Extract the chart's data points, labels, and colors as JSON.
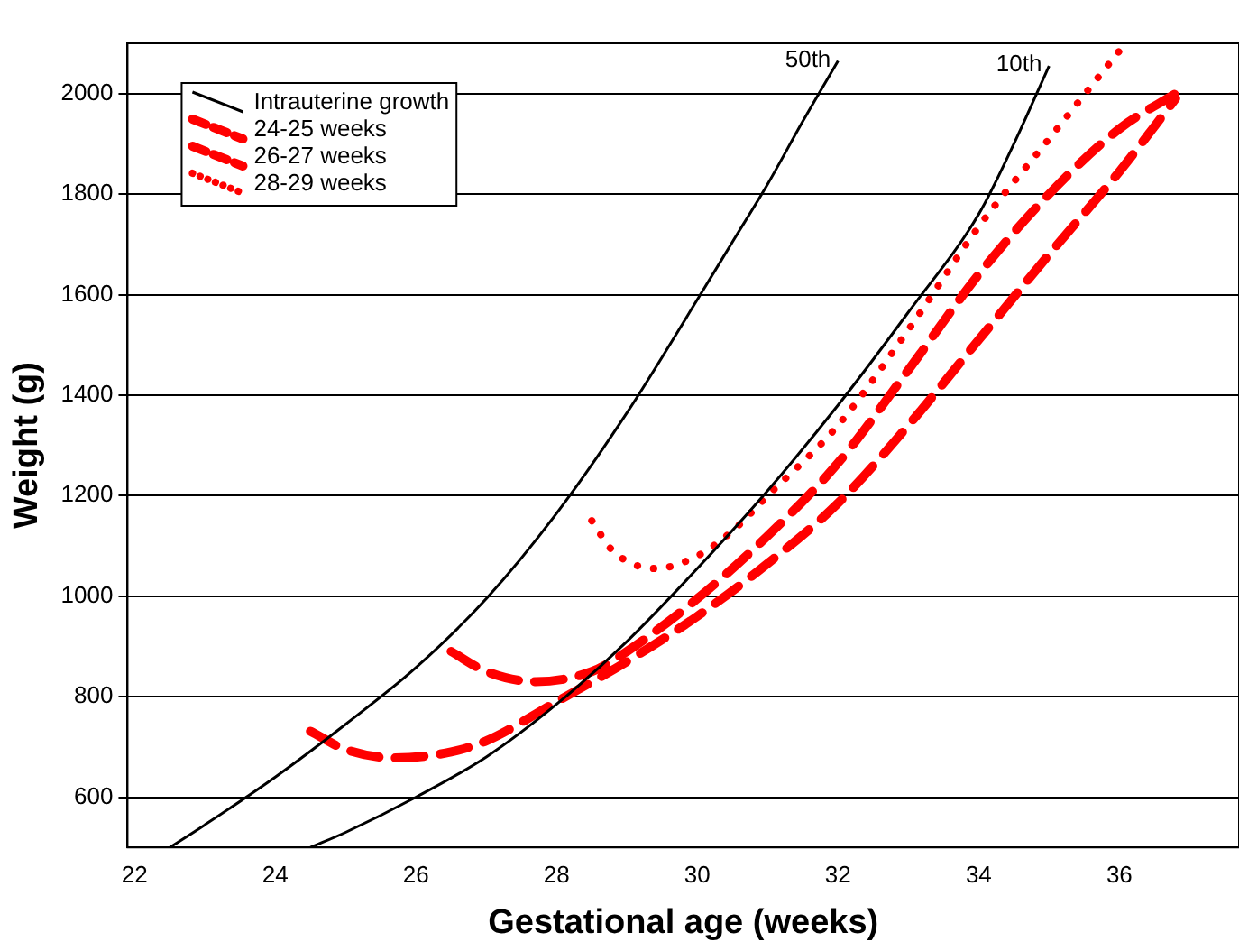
{
  "chart_data": {
    "type": "line",
    "xlabel": "Gestational age (weeks)",
    "ylabel": "Weight (g)",
    "xlim": [
      21.9,
      37.7
    ],
    "xticks": [
      22,
      24,
      26,
      28,
      30,
      32,
      34,
      36
    ],
    "ylim": [
      500,
      2100
    ],
    "yticks": [
      600,
      800,
      1000,
      1200,
      1400,
      1600,
      1800,
      2000
    ],
    "grid": "y",
    "legend": "top left",
    "marker": "none",
    "series": [
      {
        "name": "Intrauterine growth",
        "color": "#000000",
        "line_style": "solid",
        "x": [
          22.5,
          23,
          24,
          25,
          26,
          27,
          28,
          29,
          30,
          30.5,
          31,
          31.5,
          32
        ],
        "values": [
          500,
          545,
          640,
          745,
          858,
          995,
          1165,
          1365,
          1590,
          1705,
          1820,
          1945,
          2065
        ]
      },
      {
        "color": "#000000",
        "line_style": "solid",
        "x": [
          24.5,
          25,
          26,
          27,
          28,
          29,
          30,
          31,
          32,
          33,
          34,
          34.5,
          35
        ],
        "values": [
          500,
          530,
          600,
          680,
          785,
          910,
          1055,
          1210,
          1380,
          1565,
          1760,
          1900,
          2055
        ]
      },
      {
        "name": "24-25 weeks",
        "color": "#ff0000",
        "line_style": "dashed",
        "x": [
          24.5,
          25,
          25.7,
          26.5,
          27,
          28,
          29,
          30,
          31,
          32,
          33,
          34,
          35,
          36,
          36.8
        ],
        "values": [
          731,
          695,
          678,
          690,
          712,
          790,
          870,
          960,
          1065,
          1185,
          1340,
          1510,
          1680,
          1845,
          1990
        ]
      },
      {
        "name": "26-27 weeks",
        "color": "#ff0000",
        "line_style": "dashed",
        "x": [
          26.5,
          27,
          27.7,
          28.5,
          29,
          30,
          31,
          32,
          33,
          34,
          35,
          36,
          36.8
        ],
        "values": [
          890,
          850,
          830,
          850,
          890,
          995,
          1120,
          1265,
          1450,
          1640,
          1800,
          1930,
          2000
        ]
      },
      {
        "name": "28-29 weeks",
        "color": "#ff0000",
        "line_style": "dotted",
        "x": [
          28.5,
          28.8,
          29.4,
          30,
          30.5,
          31,
          32,
          33,
          34,
          35,
          36
        ],
        "values": [
          1150,
          1090,
          1055,
          1080,
          1130,
          1200,
          1340,
          1530,
          1735,
          1910,
          2085
        ]
      }
    ],
    "annotations": [
      "50th",
      "10th"
    ]
  }
}
